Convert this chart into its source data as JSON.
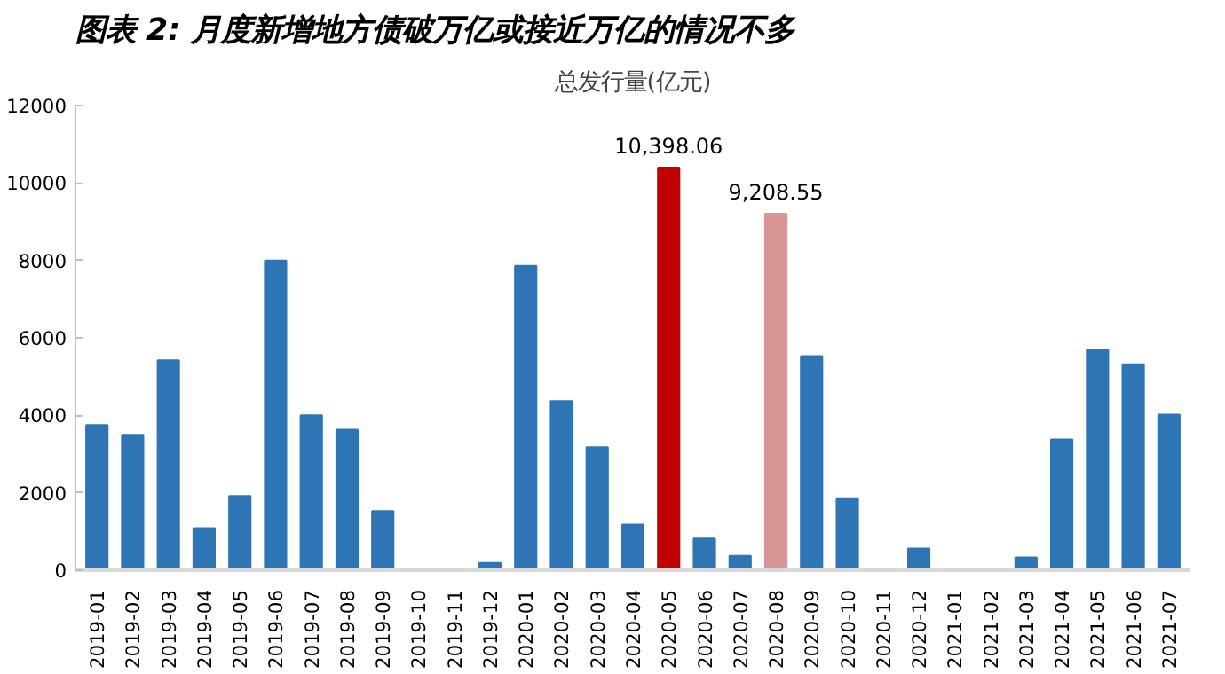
{
  "chart_data": {
    "type": "bar",
    "title": "图表 2: 月度新增地方债破万亿或接近万亿的情况不多",
    "subtitle": "总发行量(亿元)",
    "categories": [
      "2019-01",
      "2019-02",
      "2019-03",
      "2019-04",
      "2019-05",
      "2019-06",
      "2019-07",
      "2019-08",
      "2019-09",
      "2019-10",
      "2019-11",
      "2019-12",
      "2020-01",
      "2020-02",
      "2020-03",
      "2020-04",
      "2020-05",
      "2020-06",
      "2020-07",
      "2020-08",
      "2020-09",
      "2020-10",
      "2020-11",
      "2020-12",
      "2021-01",
      "2021-02",
      "2021-03",
      "2021-04",
      "2021-05",
      "2021-06",
      "2021-07"
    ],
    "values": [
      3750,
      3500,
      5420,
      1090,
      1920,
      8000,
      4000,
      3630,
      1530,
      0,
      0,
      190,
      7860,
      4370,
      3180,
      1180,
      10398.06,
      820,
      370,
      9208.55,
      5530,
      1860,
      0,
      560,
      0,
      0,
      330,
      3380,
      5690,
      5320,
      4020
    ],
    "colors": [
      "#2e75b6",
      "#2e75b6",
      "#2e75b6",
      "#2e75b6",
      "#2e75b6",
      "#2e75b6",
      "#2e75b6",
      "#2e75b6",
      "#2e75b6",
      "#2e75b6",
      "#2e75b6",
      "#2e75b6",
      "#2e75b6",
      "#2e75b6",
      "#2e75b6",
      "#2e75b6",
      "#c00000",
      "#2e75b6",
      "#2e75b6",
      "#d99594",
      "#2e75b6",
      "#2e75b6",
      "#2e75b6",
      "#2e75b6",
      "#2e75b6",
      "#2e75b6",
      "#2e75b6",
      "#2e75b6",
      "#2e75b6",
      "#2e75b6",
      "#2e75b6"
    ],
    "value_labels": [
      null,
      null,
      null,
      null,
      null,
      null,
      null,
      null,
      null,
      null,
      null,
      null,
      null,
      null,
      null,
      null,
      "10,398.06",
      null,
      null,
      "9,208.55",
      null,
      null,
      null,
      null,
      null,
      null,
      null,
      null,
      null,
      null,
      null
    ],
    "ylim": [
      0,
      12000
    ],
    "yticks": [
      0,
      2000,
      4000,
      6000,
      8000,
      10000,
      12000
    ],
    "grid": false
  }
}
